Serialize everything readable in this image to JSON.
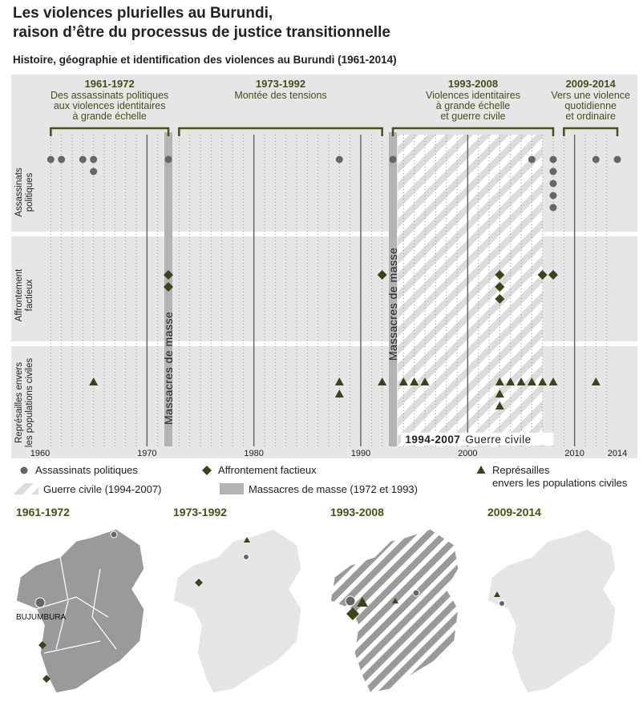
{
  "chart_data": {
    "type": "timeline",
    "title": [
      "Les violences plurielles au Burundi,",
      "raison d’être du processus de justice transitionnelle"
    ],
    "subtitle": "Histoire, géographie et identification des violences au Burundi (1961-2014)",
    "xlim": [
      1960,
      2014
    ],
    "xticks": [
      1960,
      1970,
      1980,
      1990,
      2000,
      2010,
      2014
    ],
    "grid": true,
    "periods": [
      {
        "label": "1961-1972",
        "lines": [
          "Des assassinats politiques",
          "aux violences identitaires",
          "à grande échelle"
        ],
        "span": [
          1961,
          1972
        ]
      },
      {
        "label": "1973-1992",
        "lines": [
          "Montée des tensions"
        ],
        "span": [
          1973,
          1992
        ]
      },
      {
        "label": "1993-2008",
        "lines": [
          "Violences identitaires",
          "à grande échelle",
          "et guerre civile"
        ],
        "span": [
          1993,
          2008
        ]
      },
      {
        "label": "2009-2014",
        "lines": [
          "Vers une violence",
          "quotidienne",
          "et ordinaire"
        ],
        "span": [
          2009,
          2014
        ]
      }
    ],
    "series": [
      {
        "name": "Assassinats politiques",
        "marker": "circle",
        "color": "#666666",
        "x": [
          1961,
          1962,
          1964,
          1965,
          1965,
          1972,
          1988,
          1993,
          2006,
          2008,
          2008,
          2008,
          2008,
          2008,
          2012,
          2014
        ]
      },
      {
        "name": "Affrontement factieux",
        "marker": "diamond",
        "color": "#3d4219",
        "x": [
          1972,
          1972,
          1992,
          2003,
          2003,
          2003,
          2007,
          2008
        ]
      },
      {
        "name": "Représailles envers les populations civiles",
        "marker": "triangle",
        "color": "#3d4219",
        "x": [
          1965,
          1988,
          1988,
          1992,
          1994,
          1995,
          1996,
          2003,
          2003,
          2003,
          2004,
          2005,
          2006,
          2007,
          2008,
          2012
        ]
      }
    ],
    "massacres": {
      "label": "Massacres de masse",
      "legend": "Massacres de masse (1972 et 1993)",
      "years": [
        1972,
        1993
      ]
    },
    "civil_war": {
      "years": "1994-2007",
      "label": "Guerre civile",
      "legend": "Guerre civile (1994-2007)",
      "span": [
        1994,
        2007
      ]
    },
    "maps": [
      {
        "title": "1961-1972"
      },
      {
        "title": "1973-1992"
      },
      {
        "title": "1993-2008"
      },
      {
        "title": "2009-2014"
      }
    ],
    "capital": "BUJUMBURA"
  }
}
